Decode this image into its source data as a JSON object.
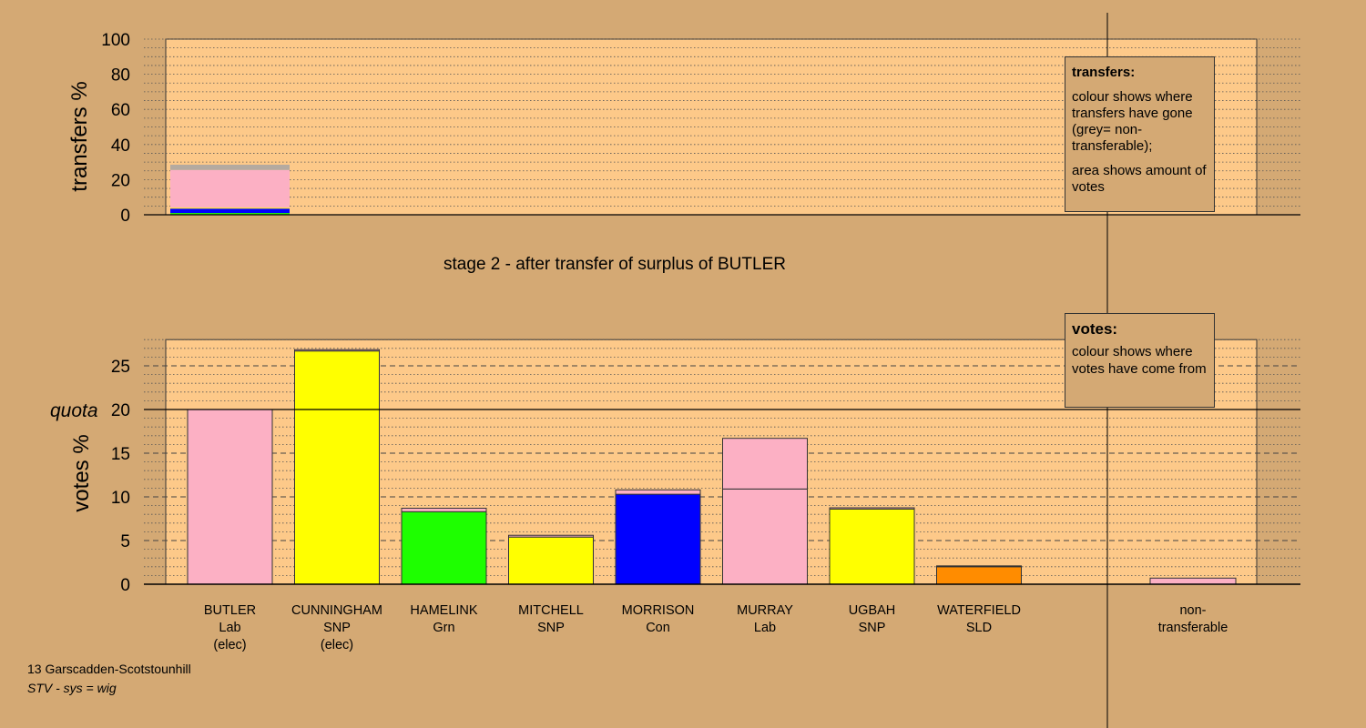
{
  "colors": {
    "page_bg": "#d4a974",
    "plot_bg": "#fdc989",
    "pink": "#fcb0c4",
    "yellow": "#ffff00",
    "green": "#1eff00",
    "blue": "#0000ff",
    "orange": "#ff8c00",
    "grey": "#b4aaa0"
  },
  "stage_title": "stage 2 - after transfer of surplus of BUTLER",
  "footer": {
    "constituency": "13 Garscadden-Scotstounhill",
    "system": "STV - sys = wig"
  },
  "legend_transfers": {
    "title": "transfers:",
    "line1": "colour shows where transfers have gone (grey= non-transferable);",
    "line2": "area shows amount of votes"
  },
  "legend_votes": {
    "title": "votes:",
    "line1": "colour shows where votes have come from"
  },
  "chart_data": [
    {
      "type": "bar",
      "name": "transfers",
      "ylabel": "transfers %",
      "ylim": [
        0,
        100
      ],
      "yticks": [
        0,
        20,
        40,
        60,
        80,
        100
      ],
      "grid": "dotted",
      "transfer_bar": {
        "from": "BUTLER",
        "stack": [
          {
            "to": "HAMELINK",
            "color": "#1eff00",
            "value": 1.0
          },
          {
            "to": "MORRISON",
            "color": "#0000ff",
            "value": 2.5
          },
          {
            "to": "CUNNINGHAM/MITCHELL/UGBAH",
            "color": "#ffff00",
            "value": 0.5
          },
          {
            "to": "MURRAY",
            "color": "#fcb0c4",
            "value": 21.5
          },
          {
            "to": "non-transferable",
            "color": "#b4aaa0",
            "value": 3.0
          }
        ]
      }
    },
    {
      "type": "bar",
      "name": "votes",
      "ylabel": "votes %",
      "ylim": [
        0,
        28
      ],
      "yticks": [
        0,
        5,
        10,
        15,
        20,
        25
      ],
      "quota": 20,
      "quota_label": "quota",
      "grid": "dotted",
      "categories": [
        {
          "name": "BUTLER",
          "party": "Lab",
          "note": "(elec)",
          "segments": [
            {
              "color": "#fcb0c4",
              "value": 20.0
            }
          ]
        },
        {
          "name": "CUNNINGHAM",
          "party": "SNP",
          "note": "(elec)",
          "segments": [
            {
              "color": "#ffff00",
              "value": 26.7
            },
            {
              "color": "#fcb0c4",
              "value": 0.15
            }
          ]
        },
        {
          "name": "HAMELINK",
          "party": "Grn",
          "note": "",
          "segments": [
            {
              "color": "#1eff00",
              "value": 8.3
            },
            {
              "color": "#fcb0c4",
              "value": 0.4
            }
          ]
        },
        {
          "name": "MITCHELL",
          "party": "SNP",
          "note": "",
          "segments": [
            {
              "color": "#ffff00",
              "value": 5.4
            },
            {
              "color": "#fcb0c4",
              "value": 0.2
            }
          ]
        },
        {
          "name": "MORRISON",
          "party": "Con",
          "note": "",
          "segments": [
            {
              "color": "#0000ff",
              "value": 10.3
            },
            {
              "color": "#fcb0c4",
              "value": 0.5
            }
          ]
        },
        {
          "name": "MURRAY",
          "party": "Lab",
          "note": "",
          "segments": [
            {
              "color": "#fcb0c4",
              "value": 10.9
            },
            {
              "color": "#fcb0c4",
              "value": 5.8
            }
          ]
        },
        {
          "name": "UGBAH",
          "party": "SNP",
          "note": "",
          "segments": [
            {
              "color": "#ffff00",
              "value": 8.6
            },
            {
              "color": "#fcb0c4",
              "value": 0.15
            }
          ]
        },
        {
          "name": "WATERFIELD",
          "party": "SLD",
          "note": "",
          "segments": [
            {
              "color": "#ff8c00",
              "value": 2.0
            },
            {
              "color": "#fcb0c4",
              "value": 0.1
            }
          ]
        }
      ],
      "nontransferable": {
        "label1": "non-",
        "label2": "transferable",
        "value": 0.7,
        "color": "#fcb0c4"
      }
    }
  ]
}
